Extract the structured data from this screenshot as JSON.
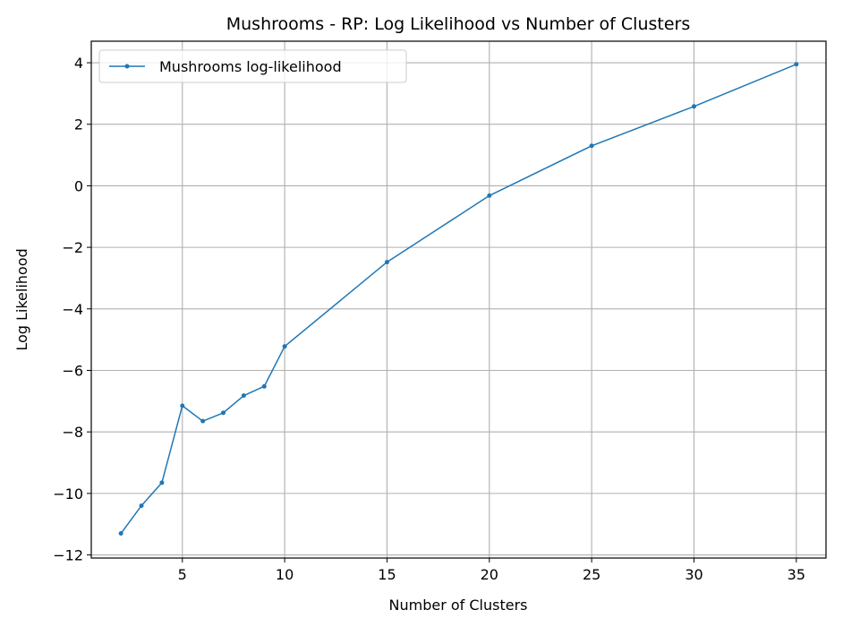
{
  "chart_data": {
    "type": "line",
    "title": "Mushrooms - RP: Log Likelihood vs Number of Clusters",
    "xlabel": "Number of Clusters",
    "ylabel": "Log Likelihood",
    "xlim": [
      0.55,
      36.45
    ],
    "ylim": [
      -12.1,
      4.7
    ],
    "xticks": [
      5,
      10,
      15,
      20,
      25,
      30,
      35
    ],
    "yticks": [
      -12,
      -10,
      -8,
      -6,
      -4,
      -2,
      0,
      2,
      4
    ],
    "grid": true,
    "legend": "top-left",
    "series": [
      {
        "name": "Mushrooms log-likelihood",
        "color": "#1f77b4",
        "x": [
          2,
          3,
          4,
          5,
          6,
          7,
          8,
          9,
          10,
          15,
          20,
          25,
          30,
          35
        ],
        "y": [
          -11.3,
          -10.4,
          -9.65,
          -7.15,
          -7.65,
          -7.38,
          -6.82,
          -6.52,
          -5.22,
          -2.48,
          -0.32,
          1.3,
          2.58,
          3.95
        ]
      }
    ]
  }
}
